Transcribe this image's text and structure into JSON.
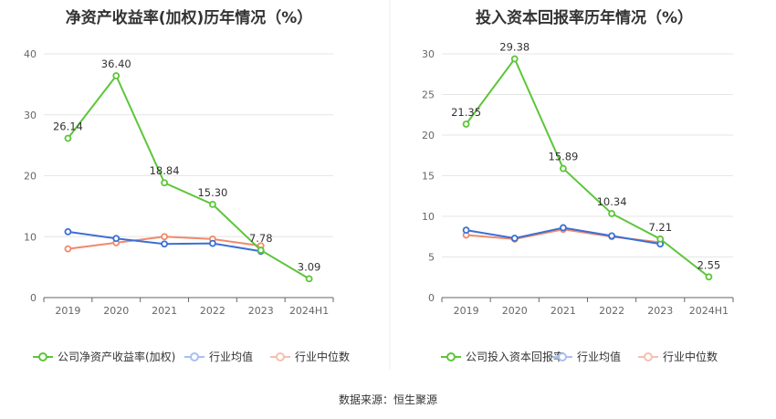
{
  "source_label": "数据来源：恒生聚源",
  "chart_data": [
    {
      "type": "line",
      "title": "净资产收益率(加权)历年情况（%）",
      "categories": [
        "2019",
        "2020",
        "2021",
        "2022",
        "2023",
        "2024H1"
      ],
      "ylim": [
        0,
        40
      ],
      "yticks": [
        0,
        10,
        20,
        30,
        40
      ],
      "grid": true,
      "legend_position": "bottom",
      "series": [
        {
          "name": "公司净资产收益率(加权)",
          "color": "#5cc63a",
          "values": [
            26.14,
            36.4,
            18.84,
            15.3,
            7.78,
            3.09
          ],
          "labels": [
            "26.14",
            "36.40",
            "18.84",
            "15.30",
            "7.78",
            "3.09"
          ]
        },
        {
          "name": "行业均值",
          "color": "#3b6fd4",
          "values": [
            10.8,
            9.7,
            8.8,
            8.9,
            7.6,
            null
          ]
        },
        {
          "name": "行业中位数",
          "color": "#f0896a",
          "values": [
            8.0,
            9.0,
            10.0,
            9.6,
            8.5,
            null
          ]
        }
      ]
    },
    {
      "type": "line",
      "title": "投入资本回报率历年情况（%）",
      "categories": [
        "2019",
        "2020",
        "2021",
        "2022",
        "2023",
        "2024H1"
      ],
      "ylim": [
        0,
        30
      ],
      "yticks": [
        0,
        5,
        10,
        15,
        20,
        25,
        30
      ],
      "grid": true,
      "legend_position": "bottom",
      "series": [
        {
          "name": "公司投入资本回报率",
          "color": "#5cc63a",
          "values": [
            21.35,
            29.38,
            15.89,
            10.34,
            7.21,
            2.55
          ],
          "labels": [
            "21.35",
            "29.38",
            "15.89",
            "10.34",
            "7.21",
            "2.55"
          ]
        },
        {
          "name": "行业均值",
          "color": "#3b6fd4",
          "values": [
            8.3,
            7.3,
            8.6,
            7.6,
            6.6,
            null
          ]
        },
        {
          "name": "行业中位数",
          "color": "#f0896a",
          "values": [
            7.7,
            7.2,
            8.4,
            7.5,
            6.8,
            null
          ]
        }
      ]
    }
  ]
}
